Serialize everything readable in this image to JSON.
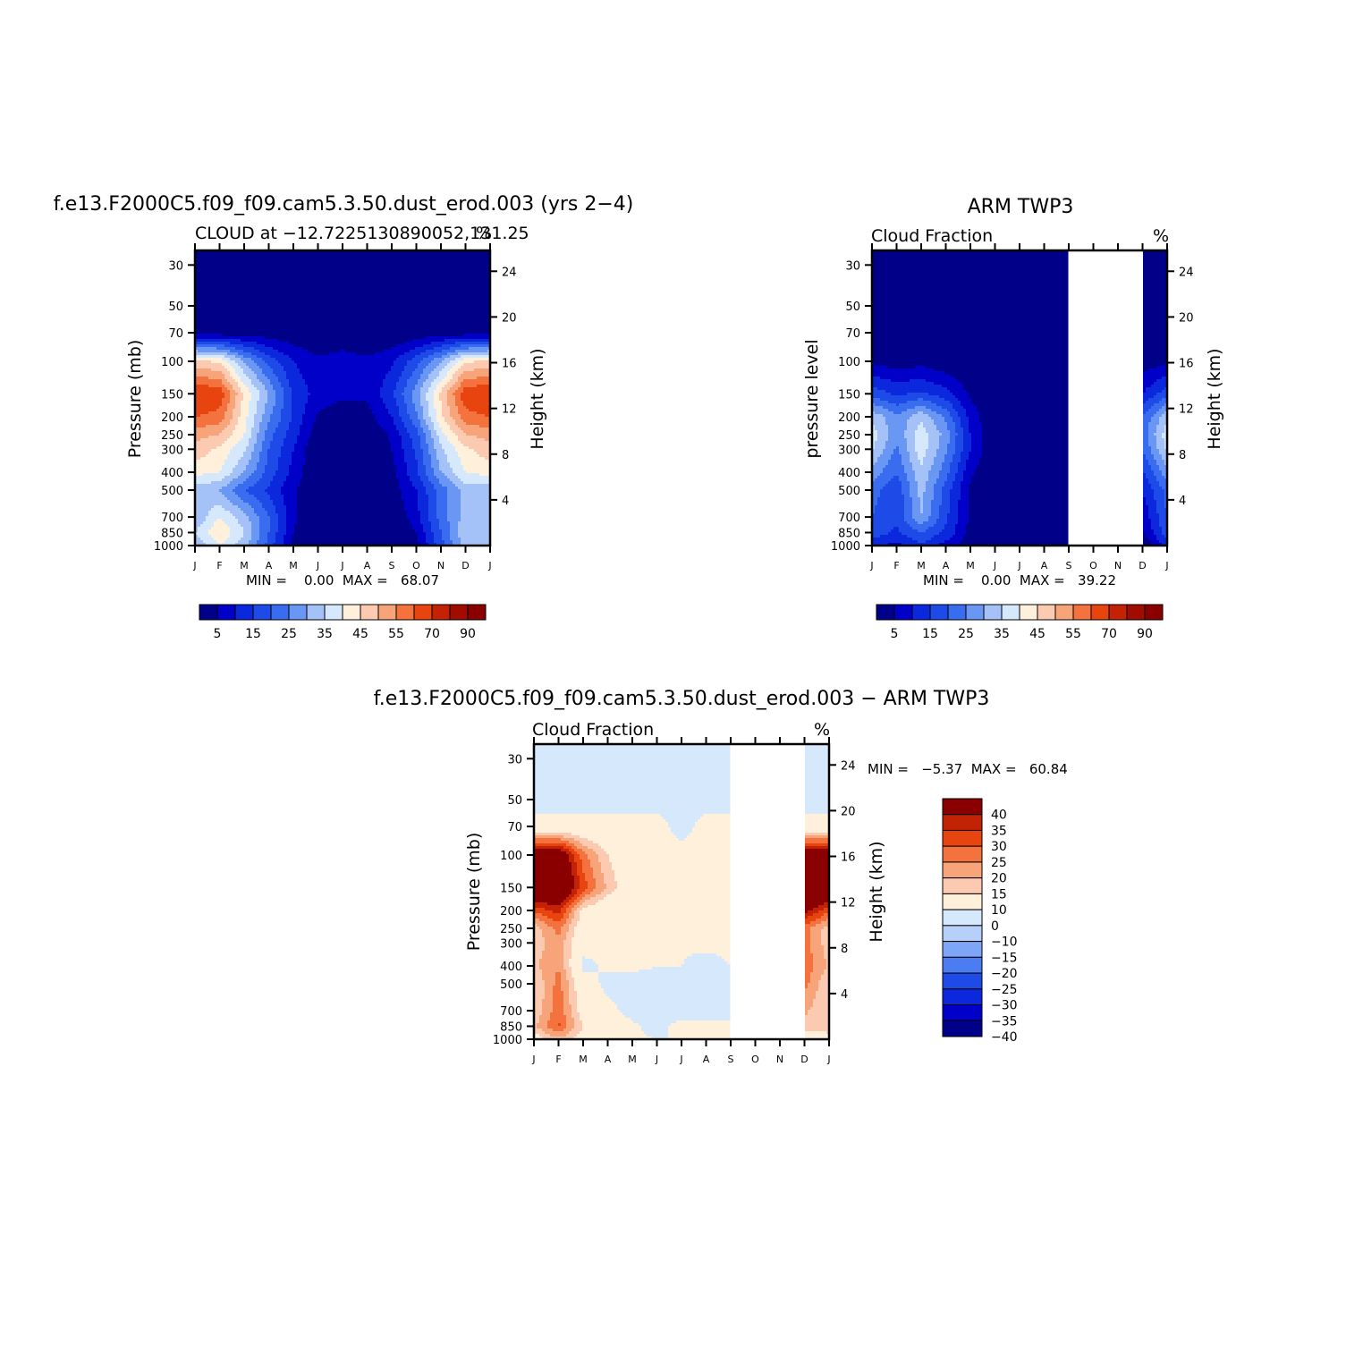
{
  "colors": {
    "blue_red_ramp": [
      "#000088",
      "#0000c8",
      "#0c28dc",
      "#1e4ae8",
      "#3a6cf0",
      "#6a96f4",
      "#a4c2f8",
      "#d6e8fc",
      "#fff0dc",
      "#fccab0",
      "#f8a47a",
      "#f4723e",
      "#e84410",
      "#c42204",
      "#a00c00",
      "#8a0000"
    ],
    "diff_ramp": [
      "#000088",
      "#0000c8",
      "#0c28dc",
      "#1e4ae8",
      "#4b7cf2",
      "#7ea6f6",
      "#b6d0fa",
      "#d6e8fc",
      "#fff0dc",
      "#fccab0",
      "#f8a47a",
      "#f4723e",
      "#e84410",
      "#c42204",
      "#8a0000"
    ]
  },
  "panels": [
    {
      "id": "model",
      "title": "f.e13.F2000C5.f09_f09.cam5.3.50.dust_erod.003 (yrs 2−4)",
      "left_string": "CLOUD at −12.7225130890052,131.25",
      "right_string": "%",
      "ylabel": "Pressure (mb)",
      "ylabel_right": "Height (km)",
      "stats": "MIN =    0.00  MAX =   68.07",
      "missing_months": [],
      "colorbar_labels": [
        "5",
        "15",
        "25",
        "35",
        "45",
        "55",
        "70",
        "90"
      ]
    },
    {
      "id": "obs",
      "title": "ARM TWP3",
      "left_string": "Cloud Fraction",
      "right_string": "%",
      "ylabel": "pressure level",
      "ylabel_right": "Height (km)",
      "stats": "MIN =    0.00  MAX =   39.22",
      "missing_months": [
        "S",
        "O",
        "N"
      ],
      "colorbar_labels": [
        "5",
        "15",
        "25",
        "35",
        "45",
        "55",
        "70",
        "90"
      ]
    },
    {
      "id": "diff",
      "title": "f.e13.F2000C5.f09_f09.cam5.3.50.dust_erod.003 − ARM TWP3",
      "left_string": "Cloud Fraction",
      "right_string": "%",
      "ylabel": "Pressure (mb)",
      "ylabel_right": "Height (km)",
      "stats": "MIN =   −5.37  MAX =   60.84",
      "missing_months": [
        "S",
        "O",
        "N"
      ],
      "colorbar_labels": [
        "40",
        "35",
        "30",
        "25",
        "20",
        "15",
        "10",
        "0",
        "−10",
        "−15",
        "−20",
        "−25",
        "−30",
        "−35",
        "−40"
      ]
    }
  ],
  "chart_data": [
    {
      "type": "heatmap",
      "title": "f.e13.F2000C5.f09_f09.cam5.3.50.dust_erod.003 (yrs 2−4)",
      "x": [
        "J",
        "F",
        "M",
        "A",
        "M",
        "J",
        "J",
        "A",
        "S",
        "O",
        "N",
        "D",
        "J"
      ],
      "y": [
        1000,
        850,
        700,
        500,
        400,
        300,
        250,
        200,
        150,
        100,
        70,
        50,
        30
      ],
      "y_right_ticks": [
        4,
        8,
        12,
        16,
        20,
        24
      ],
      "ylabel": "Pressure (mb)",
      "ylabel_right": "Height (km)",
      "z": [
        [
          30,
          40,
          32,
          18,
          3,
          0,
          0,
          0,
          0,
          3,
          18,
          32,
          30
        ],
        [
          35,
          45,
          35,
          20,
          5,
          0,
          0,
          0,
          0,
          5,
          20,
          35,
          35
        ],
        [
          30,
          40,
          32,
          20,
          6,
          0,
          0,
          0,
          0,
          8,
          22,
          32,
          30
        ],
        [
          32,
          30,
          20,
          14,
          6,
          0,
          0,
          0,
          2,
          10,
          22,
          32,
          32
        ],
        [
          42,
          40,
          30,
          18,
          8,
          0,
          0,
          0,
          3,
          14,
          30,
          40,
          42
        ],
        [
          48,
          44,
          36,
          20,
          10,
          0,
          0,
          0,
          5,
          16,
          34,
          44,
          48
        ],
        [
          52,
          50,
          40,
          22,
          12,
          2,
          0,
          0,
          6,
          18,
          38,
          50,
          52
        ],
        [
          60,
          58,
          42,
          26,
          14,
          4,
          2,
          3,
          10,
          24,
          44,
          58,
          60
        ],
        [
          66,
          64,
          44,
          30,
          14,
          8,
          6,
          6,
          14,
          28,
          46,
          64,
          66
        ],
        [
          46,
          44,
          30,
          18,
          10,
          6,
          8,
          6,
          9,
          18,
          30,
          44,
          46
        ],
        [
          2,
          2,
          2,
          2,
          1,
          0,
          0,
          0,
          0,
          1,
          2,
          2,
          2
        ],
        [
          0,
          0,
          0,
          0,
          0,
          0,
          0,
          0,
          0,
          0,
          0,
          0,
          0
        ],
        [
          0,
          0,
          0,
          0,
          0,
          0,
          0,
          0,
          0,
          0,
          0,
          0,
          0
        ]
      ],
      "levels": [
        5,
        10,
        15,
        20,
        25,
        30,
        35,
        40,
        45,
        50,
        55,
        60,
        70,
        80,
        90
      ],
      "min": 0.0,
      "max": 68.07
    },
    {
      "type": "heatmap",
      "title": "ARM TWP3",
      "x": [
        "J",
        "F",
        "M",
        "A",
        "M",
        "J",
        "J",
        "A",
        "S",
        "O",
        "N",
        "D",
        "J"
      ],
      "y": [
        1000,
        850,
        700,
        500,
        400,
        300,
        250,
        200,
        150,
        100,
        70,
        50,
        30
      ],
      "y_right_ticks": [
        4,
        8,
        12,
        16,
        20,
        24
      ],
      "ylabel": "pressure level",
      "ylabel_right": "Height (km)",
      "z": [
        [
          12,
          8,
          14,
          8,
          2,
          0,
          0,
          0,
          0,
          null,
          null,
          0,
          12
        ],
        [
          18,
          14,
          20,
          14,
          3,
          0,
          0,
          0,
          0,
          null,
          null,
          4,
          18
        ],
        [
          20,
          16,
          30,
          16,
          4,
          0,
          0,
          0,
          0,
          null,
          null,
          6,
          20
        ],
        [
          22,
          16,
          32,
          18,
          4,
          0,
          0,
          0,
          0,
          null,
          null,
          10,
          22
        ],
        [
          28,
          20,
          34,
          22,
          6,
          0,
          0,
          0,
          0,
          null,
          null,
          14,
          28
        ],
        [
          36,
          24,
          38,
          26,
          10,
          0,
          0,
          0,
          0,
          null,
          null,
          20,
          36
        ],
        [
          38,
          26,
          38,
          28,
          10,
          0,
          0,
          0,
          0,
          null,
          null,
          22,
          38
        ],
        [
          34,
          26,
          34,
          24,
          8,
          0,
          0,
          0,
          0,
          null,
          null,
          20,
          34
        ],
        [
          18,
          14,
          16,
          12,
          4,
          0,
          0,
          0,
          0,
          null,
          null,
          10,
          18
        ],
        [
          4,
          2,
          3,
          1,
          0,
          0,
          0,
          0,
          0,
          null,
          null,
          2,
          4
        ],
        [
          0,
          0,
          0,
          0,
          0,
          0,
          0,
          0,
          0,
          null,
          null,
          0,
          0
        ],
        [
          0,
          0,
          0,
          0,
          0,
          0,
          0,
          0,
          0,
          null,
          null,
          0,
          0
        ],
        [
          0,
          0,
          0,
          0,
          0,
          0,
          0,
          0,
          0,
          null,
          null,
          0,
          0
        ]
      ],
      "levels": [
        5,
        10,
        15,
        20,
        25,
        30,
        35,
        40,
        45,
        50,
        55,
        60,
        70,
        80,
        90
      ],
      "min": 0.0,
      "max": 39.22
    },
    {
      "type": "heatmap",
      "title": "f.e13.F2000C5.f09_f09.cam5.3.50.dust_erod.003 − ARM TWP3",
      "x": [
        "J",
        "F",
        "M",
        "A",
        "M",
        "J",
        "J",
        "A",
        "S",
        "O",
        "N",
        "D",
        "J"
      ],
      "y": [
        1000,
        850,
        700,
        500,
        400,
        300,
        250,
        200,
        150,
        100,
        70,
        50,
        30
      ],
      "y_right_ticks": [
        4,
        8,
        12,
        16,
        20,
        24
      ],
      "ylabel": "Pressure (mb)",
      "ylabel_right": "Height (km)",
      "z": [
        [
          6,
          14,
          6,
          2,
          1,
          0,
          0,
          0,
          0,
          null,
          null,
          2,
          6
        ],
        [
          14,
          26,
          10,
          4,
          1,
          -2,
          2,
          1,
          0,
          null,
          null,
          14,
          14
        ],
        [
          10,
          24,
          6,
          2,
          -2,
          -2,
          -3,
          -2,
          0,
          null,
          null,
          16,
          10
        ],
        [
          10,
          22,
          4,
          -2,
          -4,
          -3,
          -3,
          -4,
          0,
          null,
          null,
          22,
          10
        ],
        [
          14,
          20,
          -2,
          1,
          2,
          0,
          0,
          -3,
          0,
          null,
          null,
          24,
          14
        ],
        [
          12,
          18,
          3,
          2,
          2,
          1,
          1,
          2,
          2,
          null,
          null,
          22,
          12
        ],
        [
          12,
          22,
          4,
          2,
          2,
          2,
          2,
          2,
          2,
          null,
          null,
          22,
          12
        ],
        [
          26,
          32,
          8,
          2,
          6,
          4,
          2,
          2,
          2,
          null,
          null,
          38,
          26
        ],
        [
          48,
          50,
          28,
          14,
          4,
          2,
          2,
          2,
          2,
          null,
          null,
          52,
          48
        ],
        [
          42,
          44,
          22,
          10,
          2,
          2,
          2,
          2,
          2,
          null,
          null,
          44,
          42
        ],
        [
          2,
          2,
          2,
          2,
          2,
          2,
          -2,
          2,
          2,
          null,
          null,
          2,
          2
        ],
        [
          -2,
          -2,
          -2,
          -2,
          -2,
          -2,
          -2,
          -2,
          -2,
          null,
          null,
          -2,
          -2
        ],
        [
          -2,
          -2,
          -2,
          -2,
          -2,
          -2,
          -2,
          -2,
          -2,
          null,
          null,
          -2,
          -2
        ]
      ],
      "levels": [
        -40,
        -35,
        -30,
        -25,
        -20,
        -15,
        -10,
        0,
        10,
        15,
        20,
        25,
        30,
        35,
        40
      ],
      "min": -5.37,
      "max": 60.84
    }
  ]
}
